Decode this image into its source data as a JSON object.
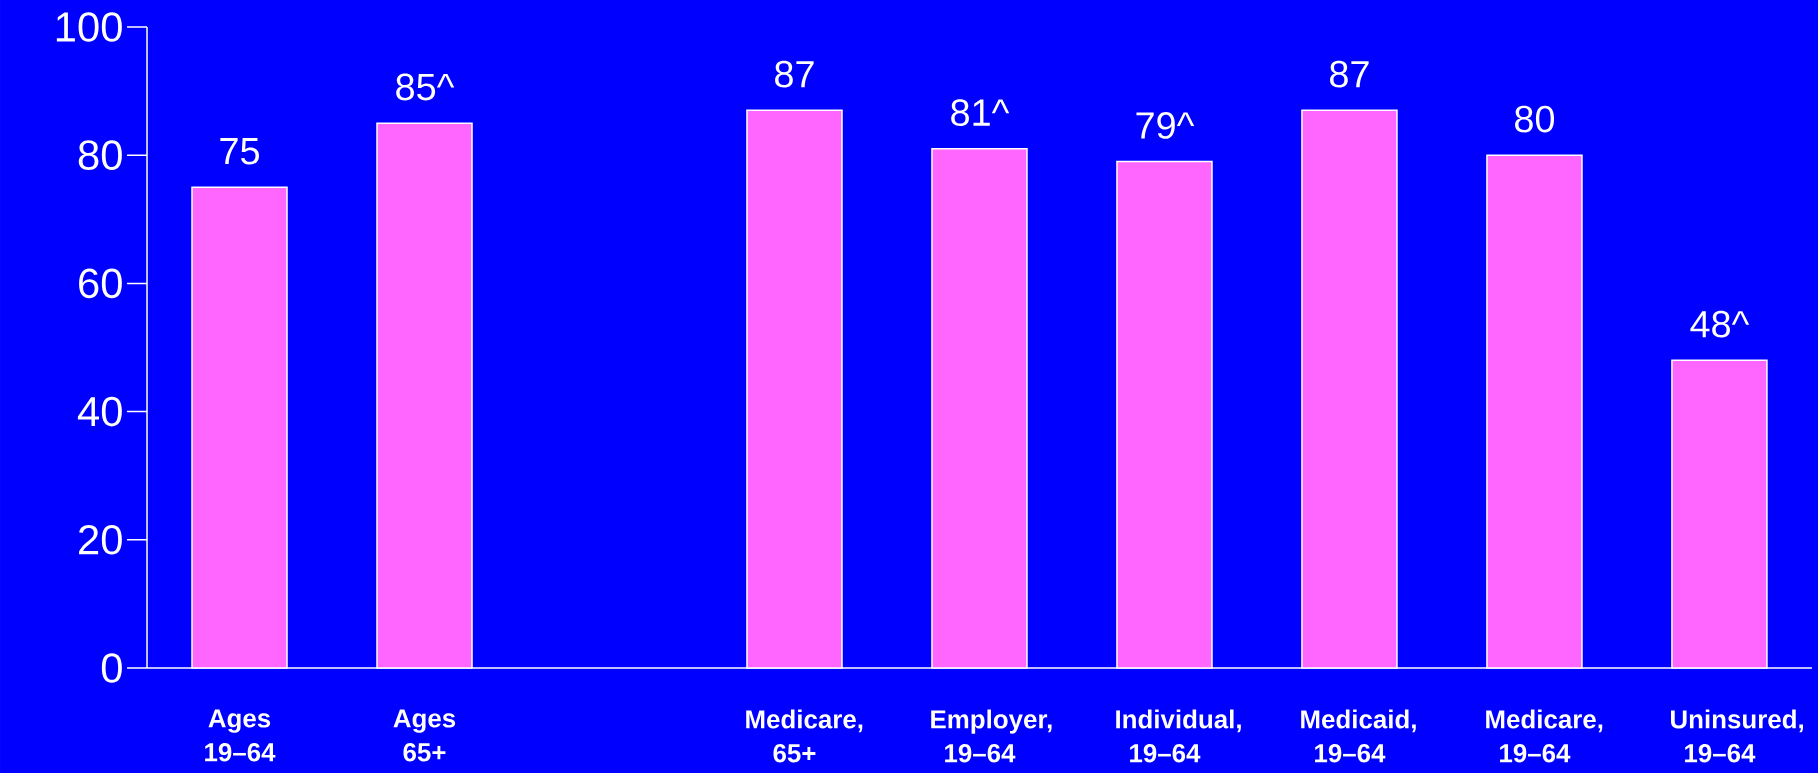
{
  "chart_data": {
    "type": "bar",
    "categories": [
      "Ages 19–64",
      "Ages 65+",
      null,
      "Medicare, 65+",
      "Employer, 19–64",
      "Individual, 19–64",
      "Medicaid, 19–64",
      "Medicare, 19–64",
      "Uninsured, 19–64"
    ],
    "values": [
      75,
      85,
      null,
      87,
      81,
      79,
      87,
      80,
      48
    ],
    "value_labels": [
      "75",
      "85^",
      null,
      "87",
      "81^",
      "79^",
      "87",
      "80",
      "48^"
    ],
    "color": "#ff66ff",
    "ylim": [
      0,
      100
    ],
    "yticks": [
      0,
      20,
      40,
      60,
      80,
      100
    ],
    "grid": false
  }
}
